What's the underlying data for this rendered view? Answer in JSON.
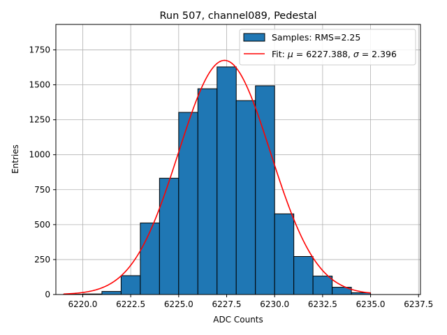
{
  "chart_data": {
    "type": "bar",
    "title": "Run 507, channel089, Pedestal",
    "xlabel": "ADC Counts",
    "ylabel": "Entries",
    "xlim": [
      6218.6,
      6237.6
    ],
    "ylim": [
      0,
      1932
    ],
    "xticks": [
      6220.0,
      6222.5,
      6225.0,
      6227.5,
      6230.0,
      6232.5,
      6235.0,
      6237.5
    ],
    "xtick_labels": [
      "6220.0",
      "6222.5",
      "6225.0",
      "6227.5",
      "6230.0",
      "6232.5",
      "6235.0",
      "6237.5"
    ],
    "yticks": [
      0,
      250,
      500,
      750,
      1000,
      1250,
      1500,
      1750
    ],
    "ytick_labels": [
      "0",
      "250",
      "500",
      "750",
      "1000",
      "1250",
      "1500",
      "1750"
    ],
    "grid": true,
    "legend_position": "top-right",
    "histogram": {
      "name": "Samples: RMS=2.25",
      "color": "#1f77b4",
      "edge_color": "#000000",
      "bin_edges": [
        6219,
        6220,
        6221,
        6222,
        6223,
        6224,
        6225,
        6226,
        6227,
        6228,
        6229,
        6230,
        6231,
        6232,
        6233,
        6234,
        6235
      ],
      "counts": [
        2,
        4,
        22,
        135,
        512,
        832,
        1303,
        1472,
        1628,
        1387,
        1493,
        577,
        272,
        132,
        52,
        13
      ]
    },
    "fit": {
      "name_prefix": "Fit: ",
      "mu_symbol": "μ",
      "mu_text": " = 6227.388, ",
      "sigma_symbol": "σ",
      "sigma_text": " = 2.396",
      "color": "#ff0000",
      "mu": 6227.388,
      "sigma": 2.396,
      "amplitude": 1675,
      "x_range": [
        6219,
        6235
      ]
    }
  }
}
